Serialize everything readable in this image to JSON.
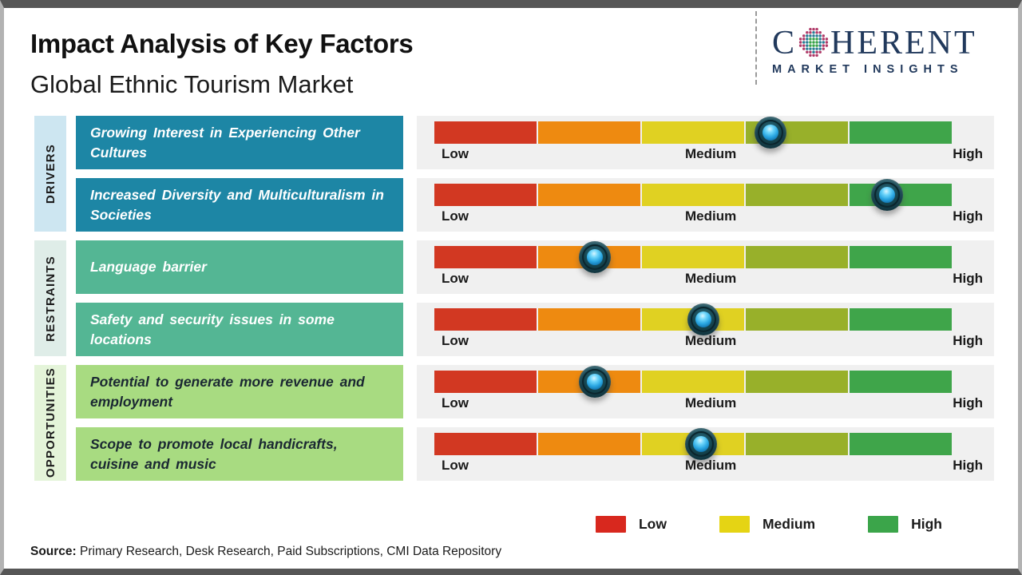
{
  "header": {
    "title": "Impact Analysis of Key Factors",
    "subtitle": "Global Ethnic Tourism Market"
  },
  "logo": {
    "name_prefix": "C",
    "name_suffix": "HERENT",
    "tagline": "MARKET INSIGHTS",
    "brand_color": "#21395c",
    "globe_icon": "dotted-globe"
  },
  "scale": {
    "low": "Low",
    "medium": "Medium",
    "high": "High"
  },
  "bar_segment_colors": [
    "#d23822",
    "#ee8a10",
    "#e0d122",
    "#98b02a",
    "#3fa54a"
  ],
  "marker_color": "#1c4d59",
  "groups": [
    {
      "label": "DRIVERS",
      "sidebar_color": "#cde6f1",
      "box_color": "#1d86a5",
      "factors": [
        {
          "text": "Growing Interest in Experiencing Other Cultures",
          "marker_pct": 65
        },
        {
          "text": "Increased Diversity and Multiculturalism in Societies",
          "marker_pct": 87.5
        }
      ]
    },
    {
      "label": "RESTRAINTS",
      "sidebar_color": "#dfede8",
      "box_color": "#54b694",
      "factors": [
        {
          "text": "Language barrier",
          "marker_pct": 31
        },
        {
          "text": "Safety and security issues in some locations",
          "marker_pct": 52
        }
      ]
    },
    {
      "label": "OPPORTUNITIES",
      "sidebar_color": "#e4f4d9",
      "box_color": "#a8db81",
      "factors": [
        {
          "text": "Potential to generate more revenue and employment",
          "marker_pct": 31
        },
        {
          "text": "Scope to promote local handicrafts, cuisine and music",
          "marker_pct": 51.5
        }
      ]
    }
  ],
  "legend": [
    {
      "label": "Low",
      "color": "#d8281e"
    },
    {
      "label": "Medium",
      "color": "#e5d414"
    },
    {
      "label": "High",
      "color": "#3ba54a"
    }
  ],
  "source": {
    "prefix": "Source:",
    "text": " Primary Research, Desk Research, Paid Subscriptions, CMI Data Repository"
  },
  "chart_data": {
    "type": "scale",
    "title": "Impact Analysis of Key Factors",
    "subtitle": "Global Ethnic Tourism Market",
    "scale_labels": [
      "Low",
      "Medium",
      "High"
    ],
    "scale_range_pct": [
      0,
      100
    ],
    "series": [
      {
        "category": "Drivers",
        "factor": "Growing Interest in Experiencing Other Cultures",
        "impact_pct": 65,
        "impact": "Medium-High"
      },
      {
        "category": "Drivers",
        "factor": "Increased Diversity and Multiculturalism in Societies",
        "impact_pct": 87.5,
        "impact": "High"
      },
      {
        "category": "Restraints",
        "factor": "Language barrier",
        "impact_pct": 31,
        "impact": "Low-Medium"
      },
      {
        "category": "Restraints",
        "factor": "Safety and security issues in some locations",
        "impact_pct": 52,
        "impact": "Medium"
      },
      {
        "category": "Opportunities",
        "factor": "Potential to generate more revenue and employment",
        "impact_pct": 31,
        "impact": "Low-Medium"
      },
      {
        "category": "Opportunities",
        "factor": "Scope to promote local handicrafts, cuisine and music",
        "impact_pct": 51.5,
        "impact": "Medium"
      }
    ],
    "legend": [
      "Low",
      "Medium",
      "High"
    ],
    "legend_position": "bottom-right"
  }
}
